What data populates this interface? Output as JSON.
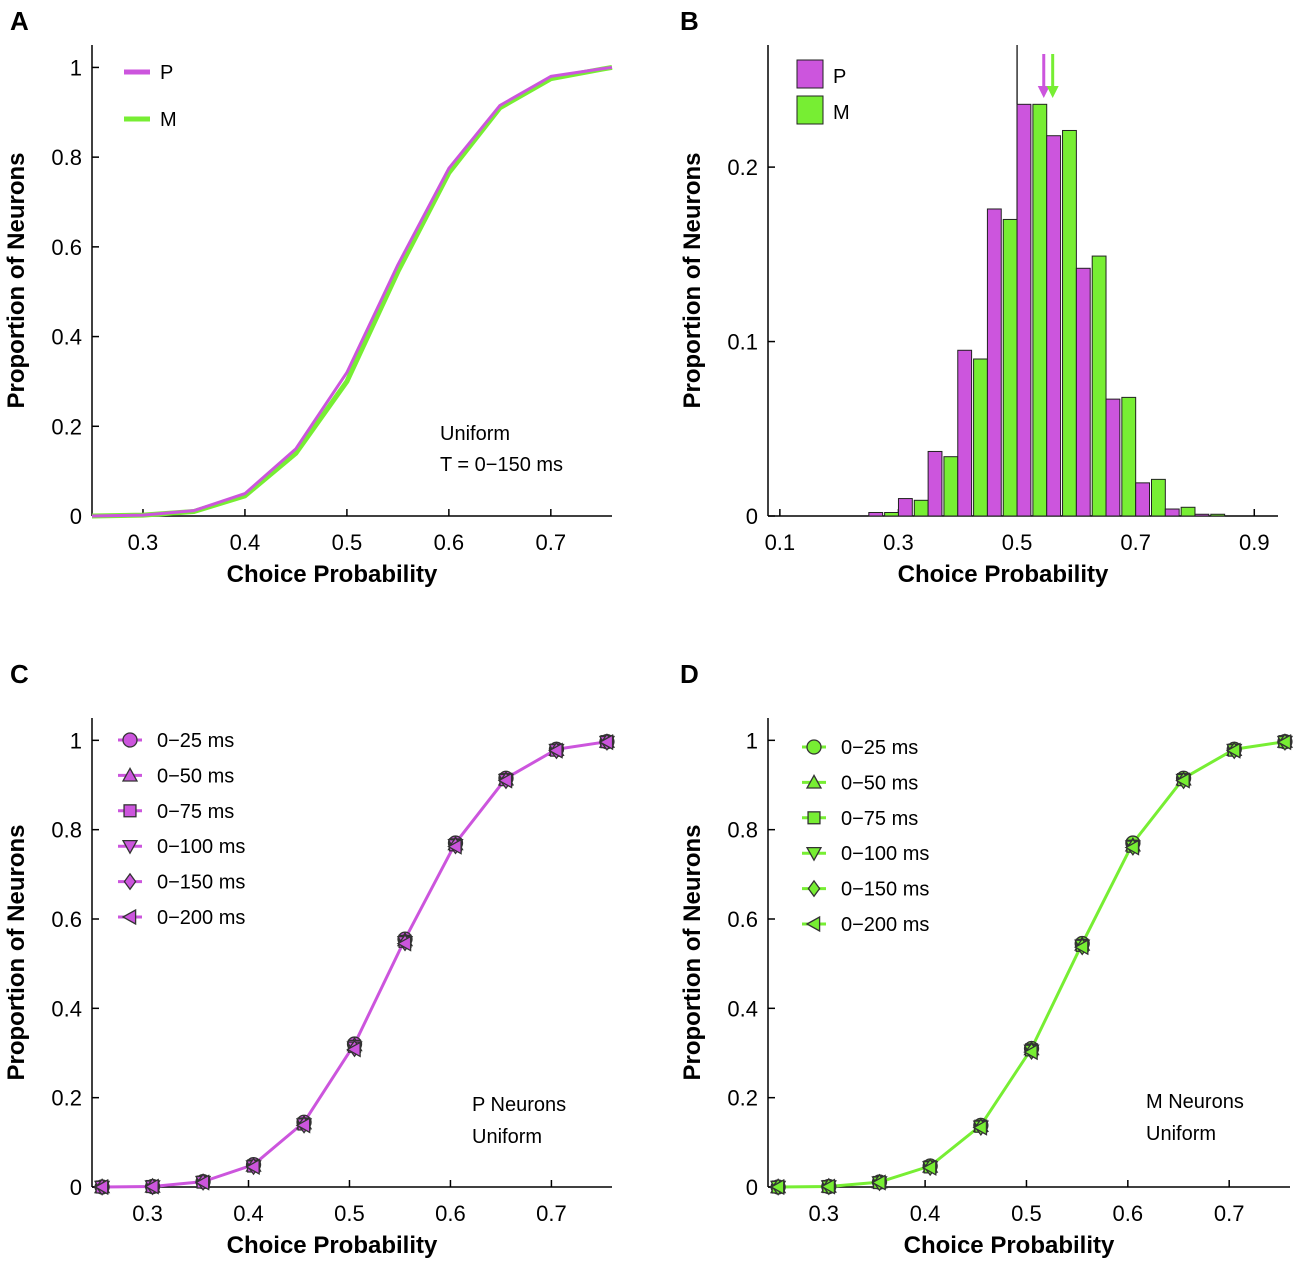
{
  "colors": {
    "P": "#cc55dd",
    "M": "#77ee33",
    "axis": "#000000"
  },
  "chart_data": [
    {
      "id": "A",
      "panel_label": "A",
      "type": "line",
      "xlabel": "Choice Probability",
      "ylabel": "Proportion of Neurons",
      "xlim": [
        0.25,
        0.76
      ],
      "ylim": [
        0,
        1.05
      ],
      "xticks": [
        0.3,
        0.4,
        0.5,
        0.6,
        0.7
      ],
      "xtick_labels": [
        "0.3",
        "0.4",
        "0.5",
        "0.6",
        "0.7"
      ],
      "yticks": [
        0,
        0.2,
        0.4,
        0.6,
        0.8,
        1
      ],
      "ytick_labels": [
        "0",
        "0.2",
        "0.4",
        "0.6",
        "0.8",
        "1"
      ],
      "legend": [
        "P",
        "M"
      ],
      "annotations": [
        "Uniform",
        "T = 0−150 ms"
      ],
      "x": [
        0.25,
        0.3,
        0.35,
        0.4,
        0.45,
        0.5,
        0.55,
        0.6,
        0.65,
        0.7,
        0.75,
        0.76
      ],
      "series": [
        {
          "name": "P",
          "color_key": "P",
          "values": [
            0,
            0.002,
            0.012,
            0.05,
            0.15,
            0.32,
            0.56,
            0.775,
            0.915,
            0.98,
            0.997,
            1.0
          ]
        },
        {
          "name": "M",
          "color_key": "M",
          "values": [
            0,
            0.002,
            0.01,
            0.045,
            0.14,
            0.3,
            0.545,
            0.765,
            0.91,
            0.975,
            0.996,
            1.0
          ]
        }
      ]
    },
    {
      "id": "B",
      "panel_label": "B",
      "type": "bar",
      "xlabel": "Choice Probability",
      "ylabel": "Proportion of Neurons",
      "xlim": [
        0.08,
        0.94
      ],
      "ylim": [
        0,
        0.27
      ],
      "xticks": [
        0.1,
        0.3,
        0.5,
        0.7,
        0.9
      ],
      "xtick_labels": [
        "0.1",
        "0.3",
        "0.5",
        "0.7",
        "0.9"
      ],
      "yticks": [
        0,
        0.1,
        0.2
      ],
      "ytick_labels": [
        "0",
        "0.1",
        "0.2"
      ],
      "legend": [
        "P",
        "M"
      ],
      "reference_line_x": 0.5,
      "mean_arrows": {
        "P": 0.545,
        "M": 0.555
      },
      "bin_width": 0.05,
      "categories": [
        0.275,
        0.325,
        0.375,
        0.425,
        0.475,
        0.525,
        0.575,
        0.625,
        0.675,
        0.725,
        0.775,
        0.825
      ],
      "series": [
        {
          "name": "P",
          "color_key": "P",
          "values": [
            0.002,
            0.01,
            0.037,
            0.095,
            0.176,
            0.236,
            0.218,
            0.142,
            0.067,
            0.019,
            0.004,
            0.001
          ]
        },
        {
          "name": "M",
          "color_key": "M",
          "values": [
            0.002,
            0.009,
            0.034,
            0.09,
            0.17,
            0.236,
            0.221,
            0.149,
            0.068,
            0.021,
            0.005,
            0.001
          ]
        }
      ]
    },
    {
      "id": "C",
      "panel_label": "C",
      "type": "line",
      "xlabel": "Choice Probability",
      "ylabel": "Proportion of Neurons",
      "xlim": [
        0.245,
        0.76
      ],
      "ylim": [
        0,
        1.05
      ],
      "xticks": [
        0.3,
        0.4,
        0.5,
        0.6,
        0.7
      ],
      "xtick_labels": [
        "0.3",
        "0.4",
        "0.5",
        "0.6",
        "0.7"
      ],
      "yticks": [
        0,
        0.2,
        0.4,
        0.6,
        0.8,
        1
      ],
      "ytick_labels": [
        "0",
        "0.2",
        "0.4",
        "0.6",
        "0.8",
        "1"
      ],
      "color_key": "P",
      "annotations": [
        "P Neurons",
        "Uniform"
      ],
      "x": [
        0.255,
        0.305,
        0.355,
        0.405,
        0.455,
        0.505,
        0.555,
        0.605,
        0.655,
        0.705,
        0.755
      ],
      "series": [
        {
          "name": "0−25 ms",
          "marker": "circle",
          "values": [
            0,
            0.001,
            0.012,
            0.05,
            0.145,
            0.32,
            0.555,
            0.77,
            0.915,
            0.98,
            0.997
          ]
        },
        {
          "name": "0−50 ms",
          "marker": "triangle-up",
          "values": [
            0,
            0.001,
            0.012,
            0.048,
            0.143,
            0.318,
            0.553,
            0.768,
            0.913,
            0.979,
            0.997
          ]
        },
        {
          "name": "0−75 ms",
          "marker": "square",
          "values": [
            0,
            0.001,
            0.011,
            0.047,
            0.141,
            0.315,
            0.55,
            0.766,
            0.912,
            0.978,
            0.997
          ]
        },
        {
          "name": "0−100 ms",
          "marker": "triangle-down",
          "values": [
            0,
            0.001,
            0.011,
            0.046,
            0.14,
            0.312,
            0.548,
            0.765,
            0.911,
            0.978,
            0.996
          ]
        },
        {
          "name": "0−150 ms",
          "marker": "diamond",
          "values": [
            0,
            0.001,
            0.011,
            0.046,
            0.139,
            0.31,
            0.547,
            0.764,
            0.91,
            0.977,
            0.996
          ]
        },
        {
          "name": "0−200 ms",
          "marker": "triangle-left",
          "values": [
            0,
            0.001,
            0.01,
            0.045,
            0.138,
            0.308,
            0.545,
            0.762,
            0.91,
            0.977,
            0.996
          ]
        }
      ]
    },
    {
      "id": "D",
      "panel_label": "D",
      "type": "line",
      "xlabel": "Choice Probability",
      "ylabel": "Proportion of Neurons",
      "xlim": [
        0.245,
        0.76
      ],
      "ylim": [
        0,
        1.05
      ],
      "xticks": [
        0.3,
        0.4,
        0.5,
        0.6,
        0.7
      ],
      "xtick_labels": [
        "0.3",
        "0.4",
        "0.5",
        "0.6",
        "0.7"
      ],
      "yticks": [
        0,
        0.2,
        0.4,
        0.6,
        0.8,
        1
      ],
      "ytick_labels": [
        "0",
        "0.2",
        "0.4",
        "0.6",
        "0.8",
        "1"
      ],
      "color_key": "M",
      "annotations": [
        "M Neurons",
        "Uniform"
      ],
      "x": [
        0.255,
        0.305,
        0.355,
        0.405,
        0.455,
        0.505,
        0.555,
        0.605,
        0.655,
        0.705,
        0.755
      ],
      "series": [
        {
          "name": "0−25 ms",
          "marker": "circle",
          "values": [
            0,
            0.001,
            0.011,
            0.047,
            0.138,
            0.31,
            0.545,
            0.77,
            0.915,
            0.98,
            0.997
          ]
        },
        {
          "name": "0−50 ms",
          "marker": "triangle-up",
          "values": [
            0,
            0.001,
            0.011,
            0.046,
            0.137,
            0.309,
            0.543,
            0.765,
            0.913,
            0.979,
            0.997
          ]
        },
        {
          "name": "0−75 ms",
          "marker": "square",
          "values": [
            0,
            0.001,
            0.01,
            0.045,
            0.136,
            0.307,
            0.541,
            0.763,
            0.912,
            0.978,
            0.997
          ]
        },
        {
          "name": "0−100 ms",
          "marker": "triangle-down",
          "values": [
            0,
            0.001,
            0.01,
            0.044,
            0.135,
            0.305,
            0.54,
            0.762,
            0.911,
            0.978,
            0.996
          ]
        },
        {
          "name": "0−150 ms",
          "marker": "diamond",
          "values": [
            0,
            0.001,
            0.01,
            0.044,
            0.134,
            0.304,
            0.538,
            0.761,
            0.91,
            0.977,
            0.996
          ]
        },
        {
          "name": "0−200 ms",
          "marker": "triangle-left",
          "values": [
            0,
            0.001,
            0.01,
            0.043,
            0.133,
            0.302,
            0.537,
            0.76,
            0.91,
            0.977,
            0.996
          ]
        }
      ]
    }
  ]
}
